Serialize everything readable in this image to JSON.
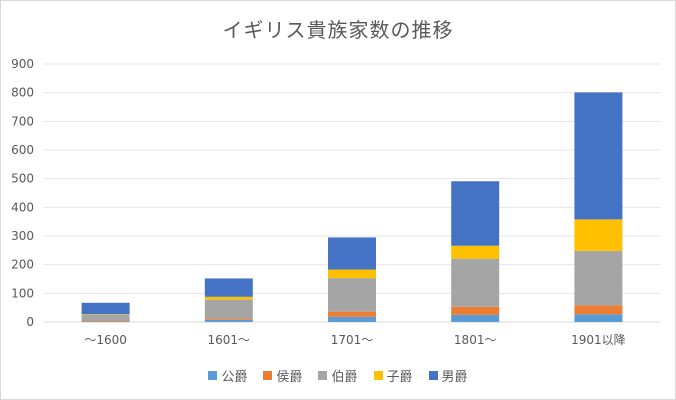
{
  "chart_data": {
    "type": "bar",
    "stacked": true,
    "title": "イギリス貴族家数の推移",
    "xlabel": "",
    "ylabel": "",
    "categories": [
      "～1600",
      "1601～",
      "1701～",
      "1801～",
      "1901以降"
    ],
    "ylim": [
      0,
      900
    ],
    "yticks": [
      0,
      100,
      200,
      300,
      400,
      500,
      600,
      700,
      800,
      900
    ],
    "grid": true,
    "legend_position": "bottom",
    "series": [
      {
        "name": "公爵",
        "color": "#5b9bd5",
        "values": [
          2,
          8,
          18,
          25,
          27
        ]
      },
      {
        "name": "侯爵",
        "color": "#ed7d31",
        "values": [
          3,
          5,
          18,
          28,
          31
        ]
      },
      {
        "name": "伯爵",
        "color": "#a5a5a5",
        "values": [
          20,
          65,
          117,
          168,
          190
        ]
      },
      {
        "name": "子爵",
        "color": "#ffc000",
        "values": [
          2,
          10,
          30,
          45,
          110
        ]
      },
      {
        "name": "男爵",
        "color": "#4472c4",
        "values": [
          40,
          64,
          112,
          225,
          443
        ]
      }
    ]
  }
}
